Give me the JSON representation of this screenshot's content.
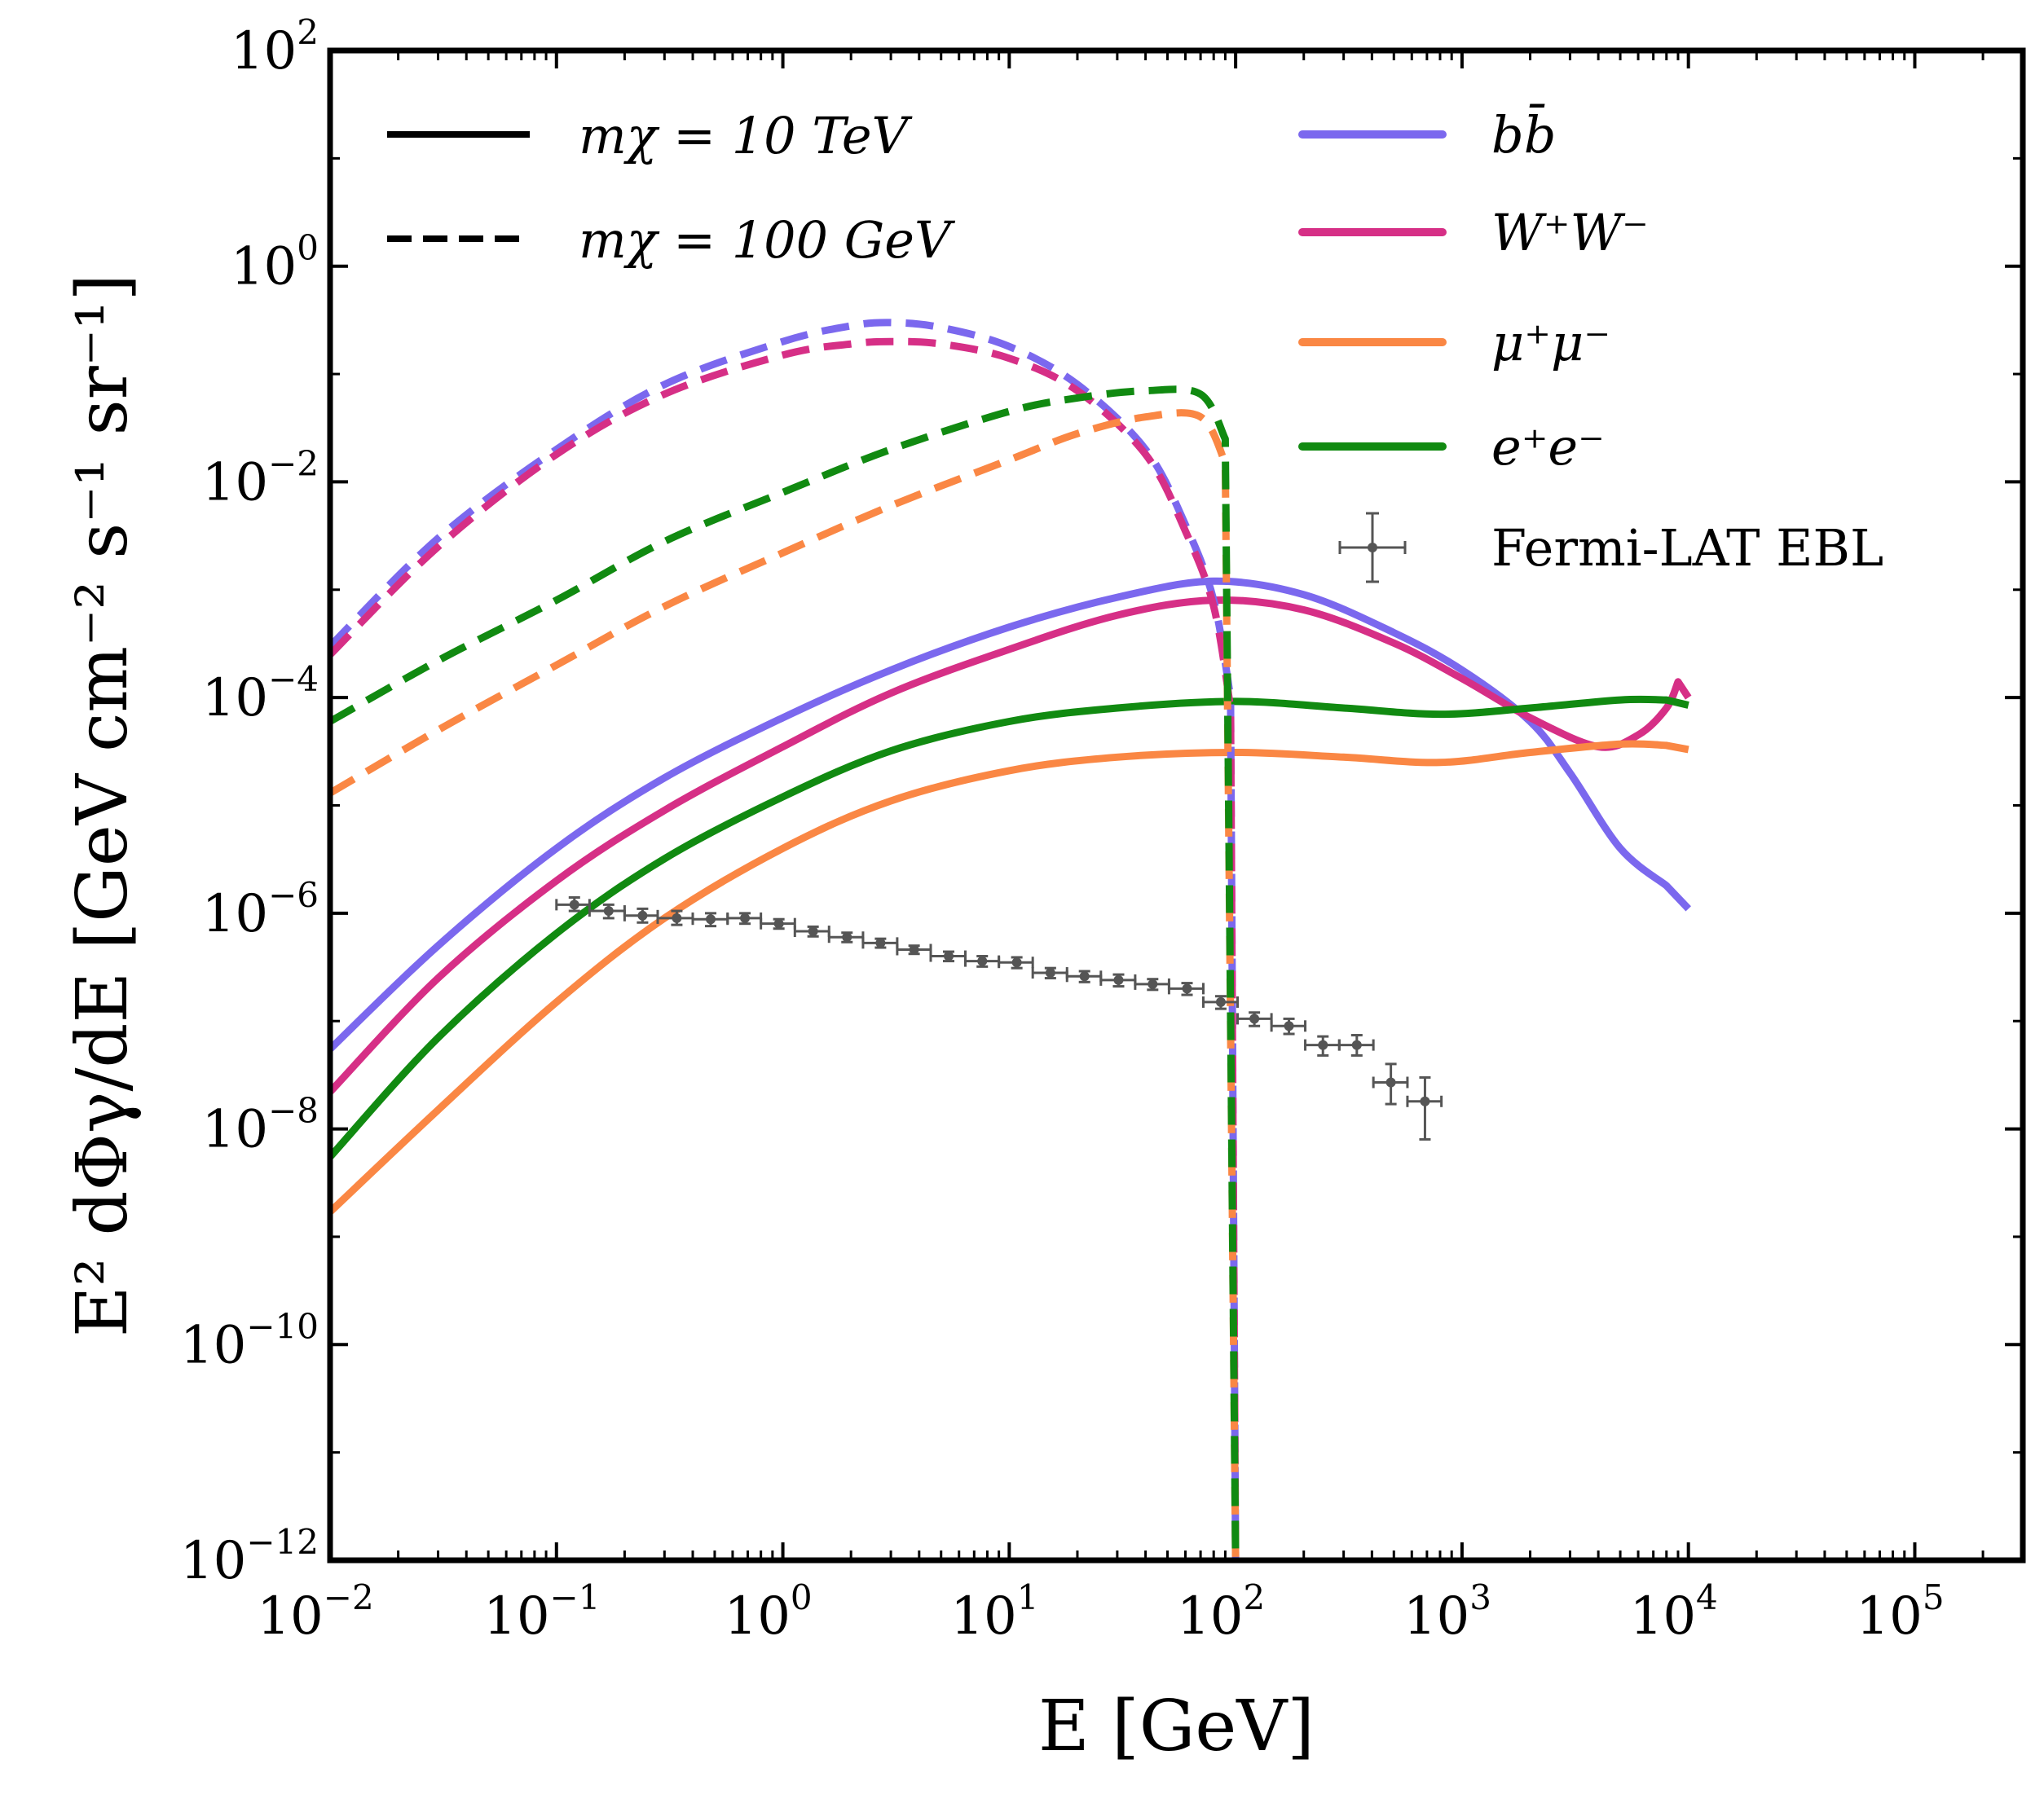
{
  "chart_data": {
    "type": "line",
    "title": "",
    "xlabel": "E [GeV]",
    "ylabel": "E² dΦγ/dE [GeV cm⁻² s⁻¹ sr⁻¹]",
    "xscale": "log",
    "yscale": "log",
    "xlim": [
      0.01,
      300000
    ],
    "ylim": [
      1e-12,
      100
    ],
    "x_ticks": [
      {
        "base": "10",
        "exp": "−2"
      },
      {
        "base": "10",
        "exp": "−1"
      },
      {
        "base": "10",
        "exp": "0"
      },
      {
        "base": "10",
        "exp": "1"
      },
      {
        "base": "10",
        "exp": "2"
      },
      {
        "base": "10",
        "exp": "3"
      },
      {
        "base": "10",
        "exp": "4"
      },
      {
        "base": "10",
        "exp": "5"
      }
    ],
    "y_ticks": [
      {
        "base": "10",
        "exp": "−12"
      },
      {
        "base": "10",
        "exp": "−10"
      },
      {
        "base": "10",
        "exp": "−8"
      },
      {
        "base": "10",
        "exp": "−6"
      },
      {
        "base": "10",
        "exp": "−4"
      },
      {
        "base": "10",
        "exp": "−2"
      },
      {
        "base": "10",
        "exp": "0"
      },
      {
        "base": "10",
        "exp": "2"
      }
    ],
    "legend": {
      "placement": "top",
      "line_styles": [
        {
          "label": "mχ = 10 TeV",
          "style": "solid"
        },
        {
          "label": "mχ = 100 GeV",
          "style": "dashed"
        }
      ],
      "channels": [
        {
          "label": "bb̄",
          "color": "#7b68ee"
        },
        {
          "label": "W⁺W⁻",
          "color": "#d62f86"
        },
        {
          "label": "μ⁺μ⁻",
          "color": "#fa8744"
        },
        {
          "label": "e⁺e⁻",
          "color": "#118a11"
        }
      ],
      "data_label": "Fermi-LAT EBL"
    },
    "series": [
      {
        "channel": "bb̄",
        "mass": "10 TeV",
        "style": "solid",
        "color": "#7b68ee",
        "x": [
          0.01,
          0.03,
          0.1,
          0.3,
          1,
          3,
          10,
          30,
          80,
          200,
          500,
          1000,
          2000,
          3000,
          5000,
          8000,
          10000
        ],
        "y": [
          5.5e-08,
          5e-07,
          4e-06,
          1.8e-05,
          6.5e-05,
          0.00018,
          0.00045,
          0.00085,
          0.0012,
          0.0009,
          0.0004,
          0.00018,
          6e-05,
          2e-05,
          4e-06,
          1.8e-06,
          1.1e-06
        ]
      },
      {
        "channel": "W⁺W⁻",
        "mass": "10 TeV",
        "style": "solid",
        "color": "#d62f86",
        "x": [
          0.01,
          0.03,
          0.1,
          0.3,
          1,
          3,
          10,
          30,
          80,
          200,
          500,
          1000,
          2000,
          4000,
          6000,
          8000,
          9000,
          10000
        ],
        "y": [
          2.2e-08,
          2.5e-07,
          2e-06,
          9e-06,
          3.5e-05,
          0.00011,
          0.00028,
          0.00058,
          0.0008,
          0.00065,
          0.00032,
          0.00015,
          6.5e-05,
          3.5e-05,
          4.5e-05,
          8e-05,
          0.00014,
          0.0001
        ]
      },
      {
        "channel": "μ⁺μ⁻",
        "mass": "10 TeV",
        "style": "solid",
        "color": "#fa8744",
        "x": [
          0.01,
          0.03,
          0.1,
          0.3,
          1,
          3,
          10,
          30,
          100,
          300,
          800,
          2000,
          5000,
          8000,
          10000
        ],
        "y": [
          1.7e-09,
          1.5e-08,
          1.5e-07,
          9e-07,
          4e-06,
          1.1e-05,
          2.1e-05,
          2.8e-05,
          3.1e-05,
          2.8e-05,
          2.5e-05,
          3.1e-05,
          3.7e-05,
          3.6e-05,
          3.3e-05
        ]
      },
      {
        "channel": "e⁺e⁻",
        "mass": "10 TeV",
        "style": "solid",
        "color": "#118a11",
        "x": [
          0.01,
          0.03,
          0.1,
          0.3,
          1,
          3,
          10,
          30,
          100,
          300,
          800,
          2000,
          5000,
          8000,
          10000
        ],
        "y": [
          5.5e-09,
          7e-08,
          6.5e-07,
          3.2e-06,
          1.2e-05,
          3.2e-05,
          6e-05,
          8e-05,
          9.2e-05,
          8e-05,
          7e-05,
          8e-05,
          9.5e-05,
          9.5e-05,
          8.5e-05
        ]
      },
      {
        "channel": "bb̄",
        "mass": "100 GeV",
        "style": "dashed",
        "color": "#7b68ee",
        "x": [
          0.01,
          0.03,
          0.1,
          0.3,
          1,
          2,
          3,
          5,
          10,
          20,
          40,
          60,
          80,
          95,
          100
        ],
        "y": [
          0.0003,
          0.003,
          0.02,
          0.08,
          0.2,
          0.28,
          0.3,
          0.27,
          0.18,
          0.08,
          0.02,
          0.004,
          0.0008,
          0.0001,
          1e-12
        ]
      },
      {
        "channel": "W⁺W⁻",
        "mass": "100 GeV",
        "style": "dashed",
        "color": "#d62f86",
        "x": [
          0.01,
          0.03,
          0.1,
          0.3,
          1,
          2,
          3,
          5,
          10,
          20,
          40,
          60,
          80,
          95,
          100
        ],
        "y": [
          0.00025,
          0.0025,
          0.018,
          0.065,
          0.15,
          0.19,
          0.2,
          0.19,
          0.14,
          0.07,
          0.018,
          0.0035,
          0.0007,
          8e-05,
          1e-12
        ]
      },
      {
        "channel": "μ⁺μ⁻",
        "mass": "100 GeV",
        "style": "dashed",
        "color": "#fa8744",
        "x": [
          0.01,
          0.03,
          0.1,
          0.3,
          1,
          3,
          10,
          20,
          40,
          70,
          90,
          100
        ],
        "y": [
          1.3e-05,
          5e-05,
          0.0002,
          0.0007,
          0.0022,
          0.006,
          0.016,
          0.028,
          0.04,
          0.04,
          0.015,
          1e-12
        ]
      },
      {
        "channel": "e⁺e⁻",
        "mass": "100 GeV",
        "style": "dashed",
        "color": "#118a11",
        "x": [
          0.01,
          0.03,
          0.1,
          0.3,
          1,
          3,
          10,
          20,
          40,
          70,
          90,
          100
        ],
        "y": [
          6e-05,
          0.00022,
          0.0008,
          0.0028,
          0.008,
          0.02,
          0.045,
          0.06,
          0.07,
          0.065,
          0.025,
          1e-12
        ]
      }
    ],
    "data_points": {
      "label": "Fermi-LAT EBL",
      "color": "#555555",
      "points": [
        {
          "x": 0.12,
          "y": 1.2e-06,
          "xlo": 0.1,
          "xhi": 0.14,
          "ylo": 1.05e-06,
          "yhi": 1.4e-06
        },
        {
          "x": 0.17,
          "y": 1.05e-06,
          "xlo": 0.14,
          "xhi": 0.2,
          "ylo": 9e-07,
          "yhi": 1.2e-06
        },
        {
          "x": 0.24,
          "y": 9.5e-07,
          "xlo": 0.2,
          "xhi": 0.28,
          "ylo": 8.2e-07,
          "yhi": 1.1e-06
        },
        {
          "x": 0.34,
          "y": 9e-07,
          "xlo": 0.28,
          "xhi": 0.4,
          "ylo": 7.8e-07,
          "yhi": 1.05e-06
        },
        {
          "x": 0.48,
          "y": 8.8e-07,
          "xlo": 0.4,
          "xhi": 0.57,
          "ylo": 7.6e-07,
          "yhi": 1e-06
        },
        {
          "x": 0.68,
          "y": 9e-07,
          "xlo": 0.57,
          "xhi": 0.8,
          "ylo": 8e-07,
          "yhi": 1e-06
        },
        {
          "x": 0.96,
          "y": 8e-07,
          "xlo": 0.8,
          "xhi": 1.13,
          "ylo": 7.2e-07,
          "yhi": 8.8e-07
        },
        {
          "x": 1.36,
          "y": 6.8e-07,
          "xlo": 1.13,
          "xhi": 1.6,
          "ylo": 6.1e-07,
          "yhi": 7.5e-07
        },
        {
          "x": 1.92,
          "y": 6e-07,
          "xlo": 1.6,
          "xhi": 2.26,
          "ylo": 5.4e-07,
          "yhi": 6.6e-07
        },
        {
          "x": 2.7,
          "y": 5.3e-07,
          "xlo": 2.26,
          "xhi": 3.2,
          "ylo": 4.8e-07,
          "yhi": 5.8e-07
        },
        {
          "x": 3.8,
          "y": 4.6e-07,
          "xlo": 3.2,
          "xhi": 4.5,
          "ylo": 4.2e-07,
          "yhi": 5e-07
        },
        {
          "x": 5.4,
          "y": 4e-07,
          "xlo": 4.5,
          "xhi": 6.4,
          "ylo": 3.6e-07,
          "yhi": 4.4e-07
        },
        {
          "x": 7.6,
          "y": 3.6e-07,
          "xlo": 6.4,
          "xhi": 9,
          "ylo": 3.2e-07,
          "yhi": 4e-07
        },
        {
          "x": 10.8,
          "y": 3.5e-07,
          "xlo": 9,
          "xhi": 12.7,
          "ylo": 3.1e-07,
          "yhi": 3.9e-07
        },
        {
          "x": 15.2,
          "y": 2.8e-07,
          "xlo": 12.7,
          "xhi": 18,
          "ylo": 2.5e-07,
          "yhi": 3.1e-07
        },
        {
          "x": 21.5,
          "y": 2.6e-07,
          "xlo": 18,
          "xhi": 25.4,
          "ylo": 2.3e-07,
          "yhi": 2.9e-07
        },
        {
          "x": 30.4,
          "y": 2.4e-07,
          "xlo": 25.4,
          "xhi": 36,
          "ylo": 2.1e-07,
          "yhi": 2.7e-07
        },
        {
          "x": 43,
          "y": 2.2e-07,
          "xlo": 36,
          "xhi": 50.8,
          "ylo": 1.95e-07,
          "yhi": 2.45e-07
        },
        {
          "x": 61,
          "y": 2e-07,
          "xlo": 50.8,
          "xhi": 72,
          "ylo": 1.75e-07,
          "yhi": 2.25e-07
        },
        {
          "x": 86,
          "y": 1.5e-07,
          "xlo": 72,
          "xhi": 102,
          "ylo": 1.3e-07,
          "yhi": 1.7e-07
        },
        {
          "x": 121,
          "y": 1.05e-07,
          "xlo": 102,
          "xhi": 144,
          "ylo": 9e-08,
          "yhi": 1.2e-07
        },
        {
          "x": 172,
          "y": 9e-08,
          "xlo": 144,
          "xhi": 203,
          "ylo": 7.6e-08,
          "yhi": 1.05e-07
        },
        {
          "x": 243,
          "y": 6e-08,
          "xlo": 203,
          "xhi": 287,
          "ylo": 4.8e-08,
          "yhi": 7.2e-08
        },
        {
          "x": 343,
          "y": 6e-08,
          "xlo": 287,
          "xhi": 406,
          "ylo": 4.8e-08,
          "yhi": 7.4e-08
        },
        {
          "x": 485,
          "y": 2.7e-08,
          "xlo": 406,
          "xhi": 574,
          "ylo": 1.7e-08,
          "yhi": 4e-08
        },
        {
          "x": 686,
          "y": 1.8e-08,
          "xlo": 574,
          "xhi": 811,
          "ylo": 8e-09,
          "yhi": 3e-08
        }
      ]
    }
  }
}
